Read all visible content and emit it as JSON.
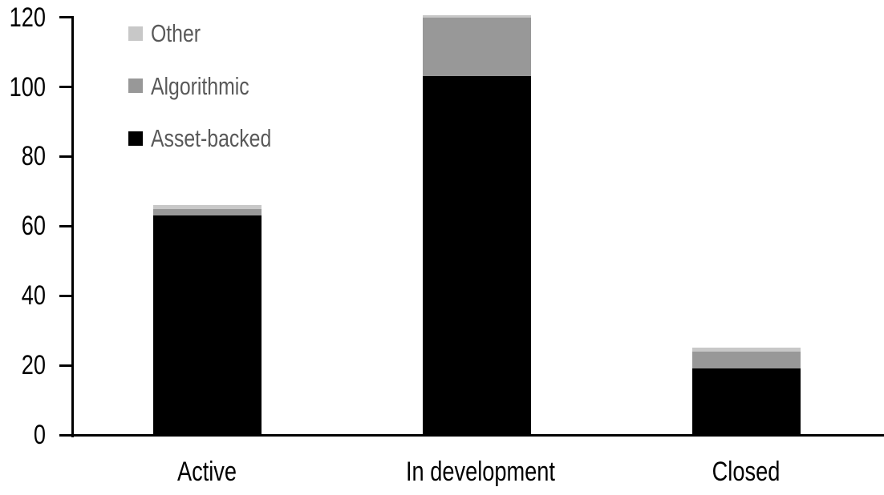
{
  "chart_data": {
    "type": "bar",
    "subtype": "stacked-column",
    "title": "",
    "categories": [
      "Active",
      "In development",
      "Closed"
    ],
    "series": [
      {
        "name": "Asset-backed",
        "color": "#000000",
        "values": [
          63,
          103,
          19
        ]
      },
      {
        "name": "Algorithmic",
        "color": "#989898",
        "values": [
          2,
          17,
          5
        ]
      },
      {
        "name": "Other",
        "color": "#c8c8c8",
        "values": [
          1,
          0.5,
          1
        ]
      }
    ],
    "stack_totals": [
      66,
      120.5,
      25
    ],
    "y_axis": {
      "min": 0,
      "max": 120,
      "tick_interval": 20,
      "tick_labels": [
        "0",
        "20",
        "40",
        "60",
        "80",
        "100",
        "120"
      ]
    },
    "x_axis": {
      "labels": [
        "Active",
        "In development",
        "Closed"
      ]
    },
    "legend": {
      "position": "top-left",
      "entries": [
        "Other",
        "Algorithmic",
        "Asset-backed"
      ],
      "text_color": "#595959"
    },
    "grid": false,
    "background_color": "#ffffff",
    "axis_color": "#000000"
  }
}
